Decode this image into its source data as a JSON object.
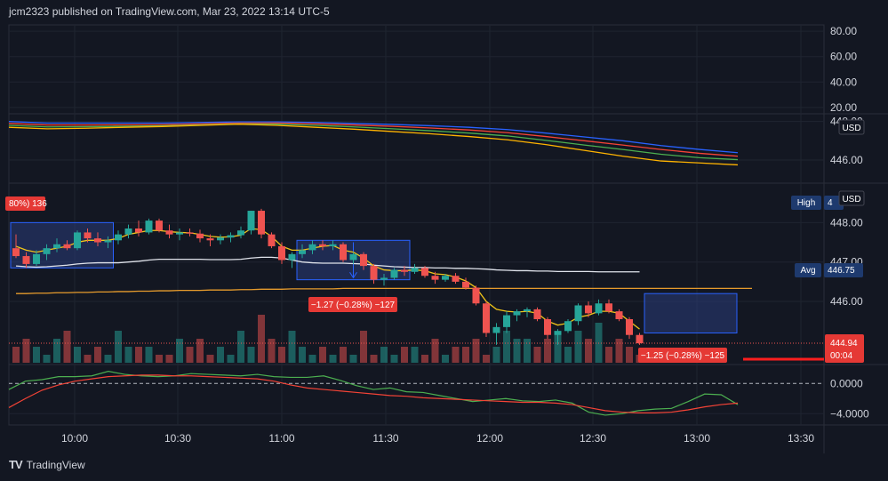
{
  "header": {
    "text": "jcm2323 published on TradingView.com, Mar 23, 2022 13:14 UTC-5"
  },
  "footer": {
    "logo": "TV",
    "brand": "TradingView"
  },
  "colors": {
    "bg": "#131722",
    "grid": "#1f2430",
    "up": "#26a69a",
    "down": "#ef5350",
    "ema_yellow": "#f0c419",
    "white_line": "#e0e3eb",
    "orange_line": "#e69b2c",
    "blue": "#2962ff",
    "red": "#f44336",
    "green": "#4caf50",
    "yellow": "#ffb300",
    "box_fill": "#2a3d7a",
    "box_stroke": "#2962ff",
    "label_red": "#e53935",
    "label_navy": "#1e3a6e"
  },
  "chart_data": [
    {
      "type": "line",
      "panel": "rsi",
      "yticks": [
        "80.00",
        "60.00",
        "40.00",
        "20.00"
      ],
      "ylim": [
        15,
        85
      ]
    },
    {
      "type": "line",
      "panel": "moving-averages",
      "yticks": [
        "448.00",
        "446.00"
      ],
      "currency_badge": "USD",
      "ylim": [
        444.8,
        448.4
      ],
      "series": [
        {
          "color": "blue",
          "values": [
            448.0,
            447.92,
            447.92,
            447.92,
            447.92,
            447.95,
            447.98,
            447.98,
            447.95,
            447.9,
            447.85,
            447.78,
            447.7,
            447.58,
            447.4,
            447.2,
            447.0,
            446.75,
            446.55,
            446.38
          ]
        },
        {
          "color": "red",
          "values": [
            447.9,
            447.82,
            447.82,
            447.83,
            447.84,
            447.88,
            447.92,
            447.92,
            447.88,
            447.82,
            447.75,
            447.66,
            447.56,
            447.42,
            447.22,
            447.0,
            446.78,
            446.55,
            446.35,
            446.2
          ]
        },
        {
          "color": "green",
          "values": [
            447.8,
            447.72,
            447.73,
            447.75,
            447.78,
            447.83,
            447.88,
            447.86,
            447.8,
            447.72,
            447.62,
            447.52,
            447.4,
            447.25,
            447.02,
            446.78,
            446.55,
            446.3,
            446.12,
            446.02
          ]
        },
        {
          "color": "yellow",
          "values": [
            447.7,
            447.62,
            447.65,
            447.7,
            447.74,
            447.8,
            447.86,
            447.8,
            447.7,
            447.6,
            447.48,
            447.36,
            447.22,
            447.05,
            446.8,
            446.5,
            446.2,
            445.95,
            445.85,
            445.75
          ]
        }
      ]
    },
    {
      "type": "candlestick",
      "panel": "price",
      "yticks": [
        "448.00",
        "447.00",
        "446.00"
      ],
      "ylim": [
        444.4,
        449.0
      ],
      "x_ticks": [
        "10:00",
        "10:30",
        "11:00",
        "11:30",
        "12:00",
        "12:30",
        "13:00",
        "13:30"
      ],
      "candles": [
        [
          447.35,
          447.7,
          447.1,
          447.15
        ],
        [
          447.15,
          447.25,
          446.85,
          446.95
        ],
        [
          446.95,
          447.3,
          446.9,
          447.2
        ],
        [
          447.2,
          447.45,
          447.05,
          447.35
        ],
        [
          447.35,
          447.6,
          447.25,
          447.45
        ],
        [
          447.45,
          447.55,
          447.3,
          447.35
        ],
        [
          447.35,
          447.8,
          447.3,
          447.75
        ],
        [
          447.75,
          447.85,
          447.5,
          447.6
        ],
        [
          447.6,
          447.75,
          447.4,
          447.5
        ],
        [
          447.5,
          447.65,
          447.35,
          447.55
        ],
        [
          447.55,
          447.8,
          447.45,
          447.7
        ],
        [
          447.7,
          447.95,
          447.6,
          447.85
        ],
        [
          447.85,
          448.05,
          447.65,
          447.75
        ],
        [
          447.75,
          448.1,
          447.7,
          448.05
        ],
        [
          448.05,
          448.1,
          447.75,
          447.8
        ],
        [
          447.8,
          447.95,
          447.6,
          447.7
        ],
        [
          447.7,
          447.85,
          447.55,
          447.75
        ],
        [
          447.75,
          447.85,
          447.65,
          447.72
        ],
        [
          447.72,
          447.82,
          447.5,
          447.6
        ],
        [
          447.6,
          447.7,
          447.4,
          447.55
        ],
        [
          447.55,
          447.7,
          447.45,
          447.62
        ],
        [
          447.62,
          447.75,
          447.5,
          447.68
        ],
        [
          447.68,
          447.9,
          447.6,
          447.8
        ],
        [
          447.8,
          448.3,
          447.7,
          448.3
        ],
        [
          448.3,
          448.35,
          447.6,
          447.7
        ],
        [
          447.7,
          447.75,
          447.35,
          447.4
        ],
        [
          447.4,
          447.5,
          446.95,
          447.05
        ],
        [
          447.05,
          447.25,
          446.85,
          447.2
        ],
        [
          447.2,
          447.45,
          447.1,
          447.3
        ],
        [
          447.3,
          447.55,
          447.2,
          447.45
        ],
        [
          447.45,
          447.55,
          447.3,
          447.4
        ],
        [
          447.4,
          447.55,
          447.3,
          447.45
        ],
        [
          447.45,
          447.5,
          447.0,
          447.05
        ],
        [
          447.05,
          447.25,
          446.95,
          447.2
        ],
        [
          447.2,
          447.25,
          446.8,
          446.9
        ],
        [
          446.9,
          446.95,
          446.45,
          446.55
        ],
        [
          446.55,
          446.7,
          446.4,
          446.6
        ],
        [
          446.6,
          446.85,
          446.55,
          446.8
        ],
        [
          446.8,
          446.9,
          446.65,
          446.75
        ],
        [
          446.75,
          446.95,
          446.7,
          446.85
        ],
        [
          446.85,
          446.9,
          446.6,
          446.65
        ],
        [
          446.65,
          446.75,
          446.45,
          446.55
        ],
        [
          446.55,
          446.7,
          446.5,
          446.65
        ],
        [
          446.65,
          446.72,
          446.45,
          446.5
        ],
        [
          446.5,
          446.6,
          446.3,
          446.35
        ],
        [
          446.35,
          446.4,
          445.9,
          445.95
        ],
        [
          445.95,
          446.0,
          445.1,
          445.2
        ],
        [
          445.2,
          445.45,
          444.9,
          445.35
        ],
        [
          445.35,
          445.75,
          445.2,
          445.65
        ],
        [
          445.65,
          445.8,
          445.5,
          445.75
        ],
        [
          445.75,
          445.85,
          445.6,
          445.8
        ],
        [
          445.8,
          445.85,
          445.5,
          445.55
        ],
        [
          445.55,
          445.6,
          445.05,
          445.15
        ],
        [
          445.15,
          445.3,
          444.9,
          445.25
        ],
        [
          445.25,
          445.55,
          445.2,
          445.5
        ],
        [
          445.5,
          445.95,
          445.4,
          445.9
        ],
        [
          445.9,
          446.0,
          445.6,
          445.7
        ],
        [
          445.7,
          446.05,
          445.65,
          445.95
        ],
        [
          445.95,
          446.05,
          445.7,
          445.75
        ],
        [
          445.75,
          445.8,
          445.5,
          445.55
        ],
        [
          445.55,
          445.6,
          445.05,
          445.15
        ],
        [
          445.15,
          445.2,
          444.9,
          444.94
        ]
      ],
      "ema_values": [
        447.4,
        447.3,
        447.25,
        447.3,
        447.35,
        447.4,
        447.5,
        447.55,
        447.55,
        447.55,
        447.6,
        447.7,
        447.75,
        447.8,
        447.8,
        447.77,
        447.75,
        447.74,
        447.7,
        447.65,
        447.63,
        447.64,
        447.68,
        447.85,
        447.82,
        447.65,
        447.4,
        447.3,
        447.3,
        447.35,
        447.4,
        447.42,
        447.3,
        447.25,
        447.1,
        446.9,
        446.8,
        446.78,
        446.78,
        446.8,
        446.78,
        446.7,
        446.68,
        446.62,
        446.52,
        446.35,
        446.0,
        445.8,
        445.75,
        445.73,
        445.75,
        445.7,
        445.5,
        445.4,
        445.45,
        445.6,
        445.65,
        445.75,
        445.75,
        445.7,
        445.5,
        445.3
      ],
      "vwap_values": [
        446.9,
        446.88,
        446.87,
        446.88,
        446.9,
        446.92,
        446.95,
        446.97,
        446.98,
        446.98,
        446.98,
        447.0,
        447.02,
        447.05,
        447.07,
        447.07,
        447.07,
        447.07,
        447.07,
        447.06,
        447.06,
        447.06,
        447.07,
        447.1,
        447.12,
        447.12,
        447.1,
        447.05,
        447.0,
        446.98,
        446.97,
        446.97,
        446.97,
        446.96,
        446.95,
        446.92,
        446.9,
        446.88,
        446.87,
        446.86,
        446.86,
        446.85,
        446.85,
        446.84,
        446.84,
        446.83,
        446.82,
        446.8,
        446.79,
        446.78,
        446.78,
        446.77,
        446.77,
        446.76,
        446.76,
        446.76,
        446.76,
        446.75,
        446.75,
        446.75,
        446.75,
        446.75
      ],
      "orange_values": [
        446.2,
        446.2,
        446.21,
        446.21,
        446.22,
        446.22,
        446.23,
        446.23,
        446.24,
        446.24,
        446.25,
        446.25,
        446.26,
        446.26,
        446.27,
        446.27,
        446.28,
        446.28,
        446.28,
        446.29,
        446.29,
        446.29,
        446.3,
        446.3,
        446.31,
        446.31,
        446.31,
        446.32,
        446.32,
        446.32,
        446.32,
        446.32,
        446.33,
        446.33,
        446.33,
        446.33,
        446.33,
        446.33,
        446.33,
        446.33,
        446.33,
        446.33,
        446.33,
        446.33,
        446.33,
        446.33,
        446.33,
        446.33,
        446.33,
        446.33,
        446.33,
        446.33,
        446.33,
        446.33,
        446.33,
        446.33,
        446.33,
        446.33,
        446.33,
        446.33,
        446.33,
        446.33
      ],
      "volumes": [
        2,
        3,
        2,
        1,
        3,
        4,
        2,
        1,
        2,
        1,
        4,
        2,
        2,
        2,
        1,
        1,
        3,
        2,
        3,
        1,
        2,
        1,
        4,
        2,
        6,
        3,
        2,
        4,
        2,
        1,
        2,
        1,
        2,
        1,
        4,
        1,
        2,
        1,
        2,
        2,
        1,
        3,
        1,
        2,
        2,
        3,
        1,
        2,
        4,
        3,
        3,
        2,
        3,
        4,
        2,
        4,
        3,
        5,
        2,
        3,
        2,
        1
      ],
      "labels": {
        "top_left_badge": "80%) 136",
        "mid_badge": "−1.27 (−0.28%) −127",
        "right_badge": "−1.25 (−0.28%) −125",
        "high_label": "High",
        "high_value": "4",
        "avg_label": "Avg",
        "avg_value": "446.75",
        "currency_badge": "USD",
        "last_price": "444.94",
        "countdown": "00:04"
      }
    },
    {
      "type": "line",
      "panel": "oscillator",
      "yticks": [
        "0.0000",
        "−4.0000"
      ],
      "ylim": [
        -5.5,
        2.5
      ],
      "series": [
        {
          "color": "green",
          "values": [
            -0.8,
            0.3,
            0.5,
            0.9,
            0.9,
            1.0,
            1.6,
            1.2,
            1.0,
            0.9,
            1.0,
            1.3,
            1.2,
            1.1,
            1.0,
            1.2,
            0.9,
            0.8,
            0.8,
            1.0,
            0.4,
            -0.3,
            -0.8,
            -0.6,
            -1.1,
            -1.2,
            -1.6,
            -2.0,
            -2.4,
            -2.2,
            -2.0,
            -2.3,
            -2.4,
            -2.2,
            -2.6,
            -3.8,
            -4.2,
            -4.0,
            -3.6,
            -3.4,
            -3.3,
            -2.4,
            -1.4,
            -1.5,
            -2.8
          ]
        },
        {
          "color": "red",
          "values": [
            -3.2,
            -2.0,
            -0.9,
            -0.2,
            0.3,
            0.6,
            0.9,
            1.0,
            1.1,
            1.1,
            1.0,
            1.0,
            0.9,
            0.8,
            0.7,
            0.6,
            0.3,
            -0.2,
            -0.6,
            -0.8,
            -1.0,
            -1.2,
            -1.4,
            -1.6,
            -1.7,
            -1.9,
            -2.0,
            -2.1,
            -2.2,
            -2.3,
            -2.4,
            -2.5,
            -2.5,
            -2.6,
            -2.8,
            -3.2,
            -3.6,
            -3.8,
            -3.9,
            -3.9,
            -3.8,
            -3.5,
            -3.1,
            -2.8,
            -2.6
          ]
        }
      ]
    }
  ]
}
